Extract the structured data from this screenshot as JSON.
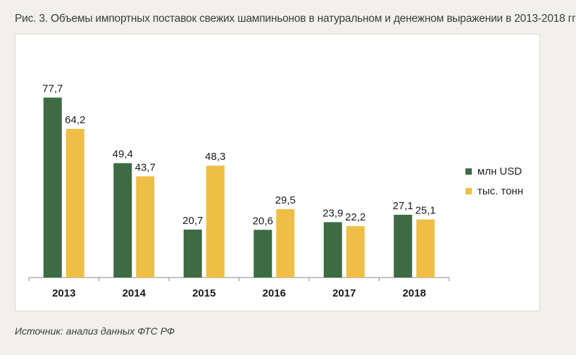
{
  "figure": {
    "title": "Рис. 3. Объемы импортных поставок свежих шампиньонов в натуральном и денежном выражении в 2013-2018 гг",
    "source": "Источник: анализ данных ФТС РФ"
  },
  "chart_data": {
    "type": "bar",
    "categories": [
      "2013",
      "2014",
      "2015",
      "2016",
      "2017",
      "2018"
    ],
    "series": [
      {
        "name": "млн USD",
        "values": [
          77.7,
          49.4,
          20.7,
          20.6,
          23.9,
          27.1
        ],
        "labels": [
          "77,7",
          "49,4",
          "20,7",
          "20,6",
          "23,9",
          "27,1"
        ],
        "color": "#3e6b43"
      },
      {
        "name": "тыс. тонн",
        "values": [
          64.2,
          43.7,
          48.3,
          29.5,
          22.2,
          25.1
        ],
        "labels": [
          "64,2",
          "43,7",
          "48,3",
          "29,5",
          "22,2",
          "25,1"
        ],
        "color": "#efbe45"
      }
    ],
    "ylim": [
      0,
      80
    ],
    "grid": false,
    "legend_position": "right"
  }
}
